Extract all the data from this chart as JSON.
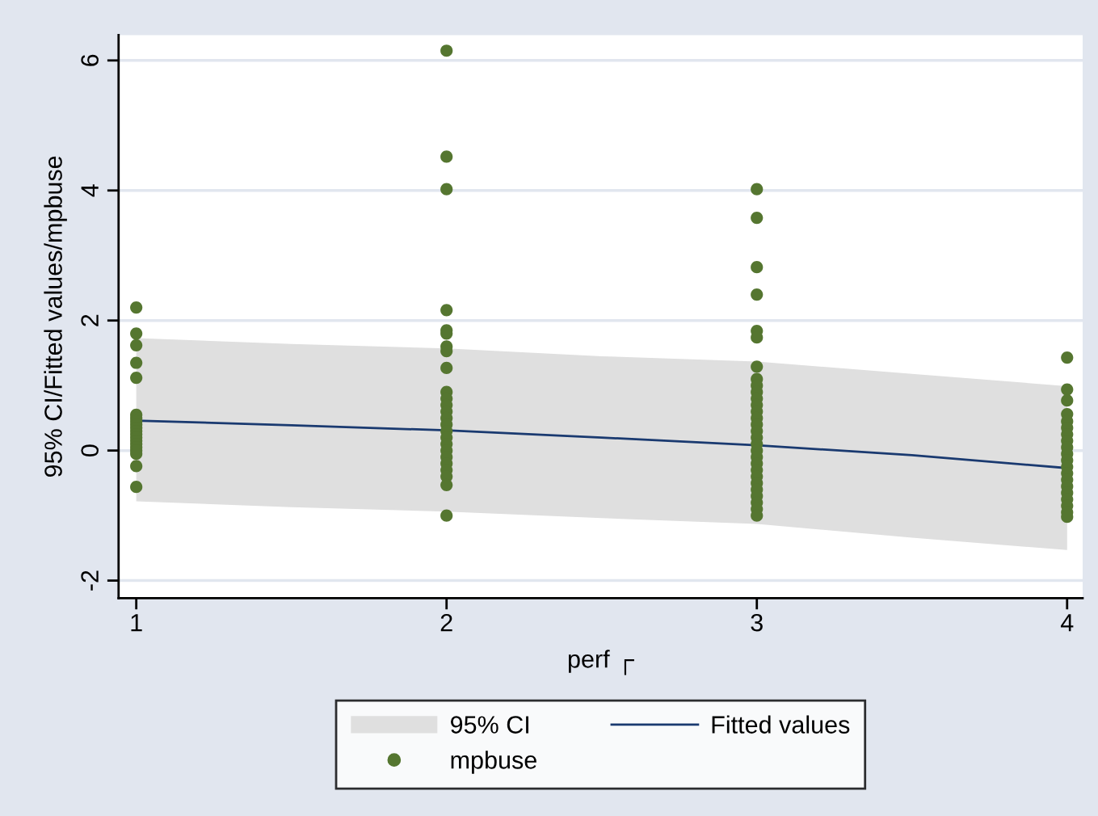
{
  "chart_data": {
    "type": "line",
    "xlabel": "perf ┌",
    "ylabel": "95% CI/Fitted values/mpbuse",
    "xlim": [
      0.943,
      4.05
    ],
    "ylim": [
      -2.27,
      6.39
    ],
    "xticks": [
      1,
      2,
      3,
      4
    ],
    "yticks": [
      -2,
      0,
      2,
      4,
      6
    ],
    "grid": "y",
    "legend": "bottom",
    "annotations": [
      "95% CI"
    ],
    "series": [
      {
        "name": "Fitted values",
        "color": "#1a3a70",
        "marker": "none",
        "line_style": "solid",
        "x": [
          1,
          1.5,
          2,
          2.5,
          3,
          3.5,
          4
        ],
        "values": [
          0.46,
          0.39,
          0.31,
          0.2,
          0.08,
          -0.07,
          -0.27
        ],
        "lower": [
          -0.78,
          -0.87,
          -0.94,
          -1.04,
          -1.13,
          -1.34,
          -1.53
        ],
        "upper": [
          1.73,
          1.64,
          1.57,
          1.45,
          1.37,
          1.18,
          0.99
        ]
      },
      {
        "name": "mpbuse",
        "type": "scatter",
        "color": "#557630",
        "marker": "circle",
        "x": [
          1,
          1,
          1,
          1,
          1,
          1,
          1,
          1,
          1,
          1,
          1,
          1,
          1,
          1,
          1,
          1,
          1,
          1,
          1,
          1,
          2,
          2,
          2,
          2,
          2,
          2,
          2,
          2,
          2,
          2,
          2,
          2,
          2,
          2,
          2,
          2,
          2,
          2,
          2,
          2,
          2,
          2,
          2,
          2,
          2,
          3,
          3,
          3,
          3,
          3,
          3,
          3,
          3,
          3,
          3,
          3,
          3,
          3,
          3,
          3,
          3,
          3,
          3,
          3,
          3,
          3,
          3,
          3,
          3,
          3,
          3,
          3,
          3,
          3,
          4,
          4,
          4,
          4,
          4,
          4,
          4,
          4,
          4,
          4,
          4,
          4,
          4,
          4,
          4,
          4,
          4,
          4,
          4,
          4
        ],
        "values": [
          2.2,
          1.8,
          1.62,
          1.35,
          1.12,
          0.55,
          0.5,
          0.45,
          0.4,
          0.35,
          0.3,
          0.25,
          0.2,
          0.15,
          0.1,
          0.05,
          0,
          -0.05,
          -0.24,
          -0.56,
          6.15,
          4.52,
          4.02,
          2.16,
          1.85,
          1.8,
          1.6,
          1.53,
          1.27,
          0.9,
          0.8,
          0.7,
          0.6,
          0.5,
          0.4,
          0.3,
          0.2,
          0.1,
          0,
          -0.1,
          -0.2,
          -0.3,
          -0.4,
          -0.53,
          -1.0,
          4.02,
          3.58,
          2.82,
          2.4,
          1.84,
          1.74,
          1.29,
          1.1,
          1.0,
          0.9,
          0.8,
          0.7,
          0.6,
          0.5,
          0.4,
          0.3,
          0.2,
          0.1,
          0,
          -0.1,
          -0.2,
          -0.3,
          -0.4,
          -0.5,
          -0.6,
          -0.7,
          -0.8,
          -0.9,
          -1.0,
          1.43,
          0.94,
          0.77,
          0.56,
          0.45,
          0.35,
          0.25,
          0.15,
          0.05,
          -0.05,
          -0.15,
          -0.25,
          -0.35,
          -0.45,
          -0.55,
          -0.65,
          -0.75,
          -0.85,
          -0.95,
          -1.02
        ]
      }
    ]
  }
}
